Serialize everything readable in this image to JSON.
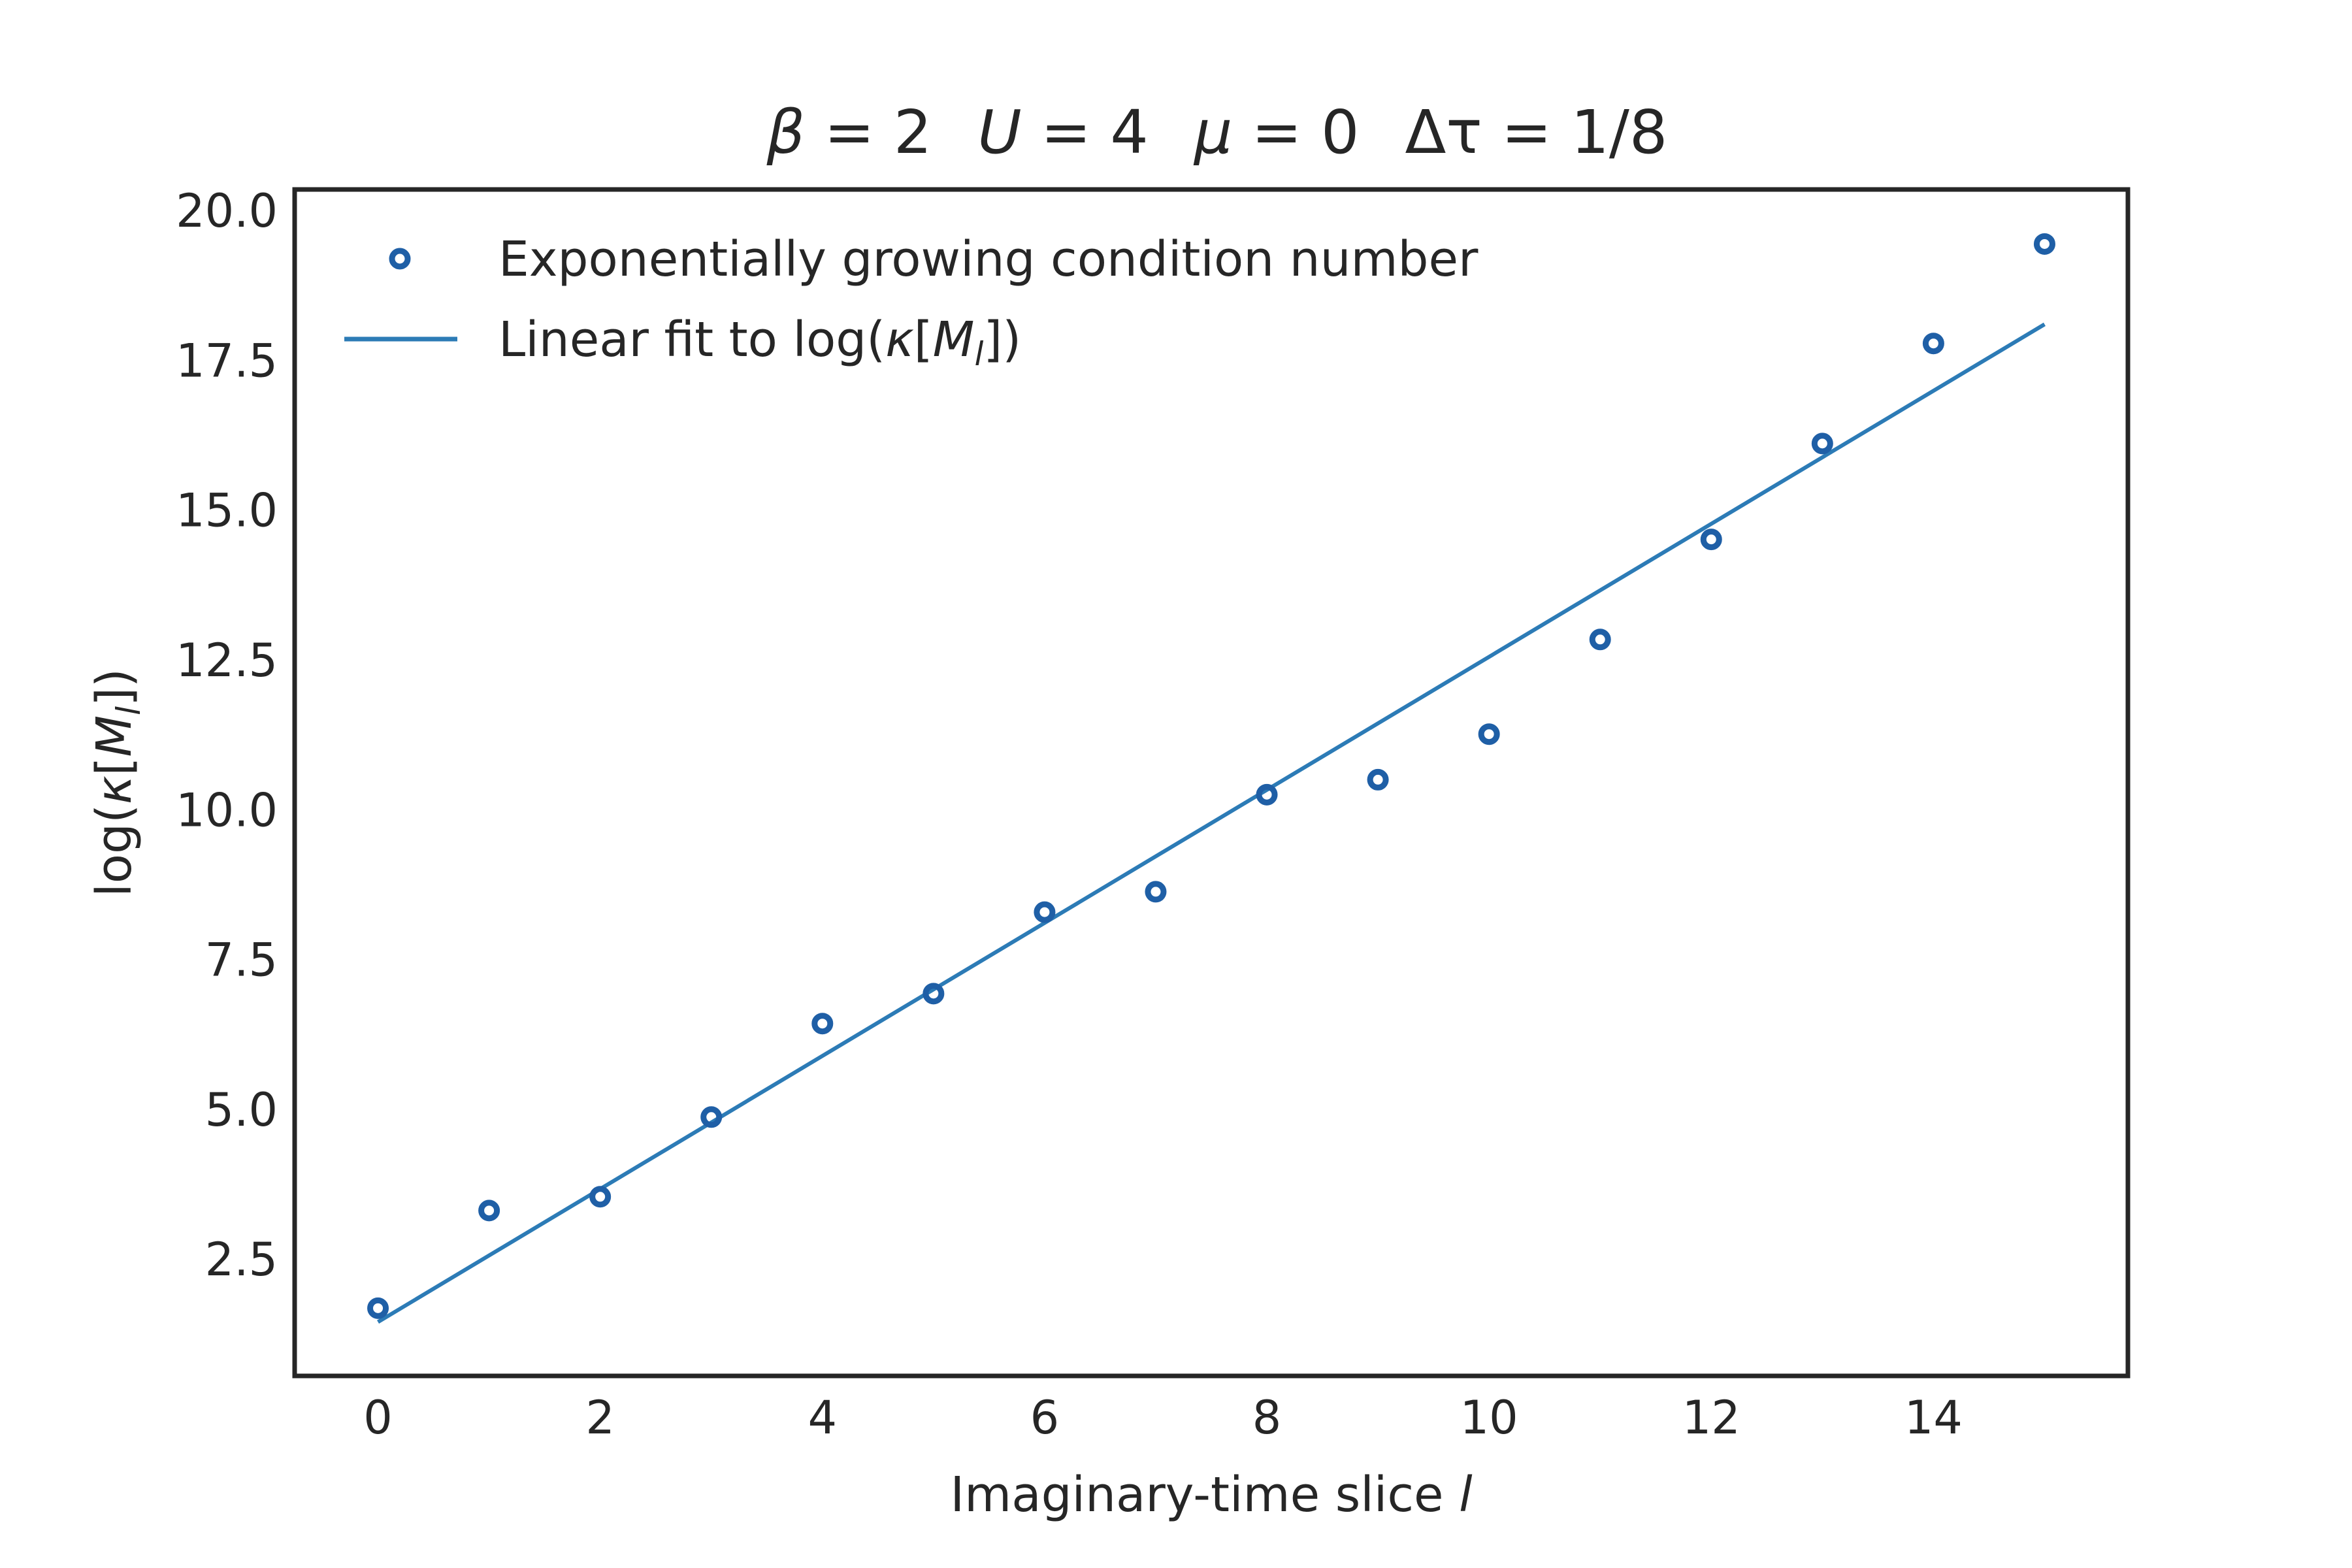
{
  "chart_data": {
    "type": "scatter",
    "title": {
      "beta": "β",
      "beta_val": " = 2",
      "u": "U",
      "u_val": " = 4",
      "mu": "μ",
      "mu_val": " = 0",
      "dtau": "Δτ",
      "dtau_val": " = 1/8"
    },
    "xlabel": {
      "text": "Imaginary-time slice ",
      "var": "l"
    },
    "ylabel": {
      "prefix": "log(",
      "kappa": "κ",
      "open": "[",
      "m": "M",
      "sub": "l",
      "close": "])"
    },
    "xlim": [
      -0.75,
      15.75
    ],
    "ylim": [
      0.55,
      20.35
    ],
    "xticks": [
      0,
      2,
      4,
      6,
      8,
      10,
      12,
      14
    ],
    "yticks": [
      2.5,
      5.0,
      7.5,
      10.0,
      12.5,
      15.0,
      17.5,
      20.0
    ],
    "xtick_labels": [
      "0",
      "2",
      "4",
      "6",
      "8",
      "10",
      "12",
      "14"
    ],
    "ytick_labels": [
      "2.5",
      "5.0",
      "7.5",
      "10.0",
      "12.5",
      "15.0",
      "17.5",
      "20.0"
    ],
    "grid": false,
    "legend_position": "top-left",
    "series": [
      {
        "name": "Exponentially growing condition number",
        "kind": "scatter",
        "color": "#1f5fa6",
        "x": [
          0,
          1,
          2,
          3,
          4,
          5,
          6,
          7,
          8,
          9,
          10,
          11,
          12,
          13,
          14,
          15
        ],
        "y": [
          1.68,
          3.31,
          3.54,
          4.87,
          6.43,
          6.93,
          8.29,
          8.63,
          10.25,
          10.5,
          11.26,
          12.84,
          14.51,
          16.11,
          17.78,
          19.44
        ]
      },
      {
        "name_prefix": "Linear fit to log(",
        "name_kappa": "κ",
        "name_open": "[",
        "name_m": "M",
        "name_sub": "l",
        "name_close": "])",
        "kind": "line",
        "color": "#2c7bb6",
        "x": [
          0,
          15
        ],
        "y": [
          1.45,
          18.1
        ]
      }
    ]
  }
}
